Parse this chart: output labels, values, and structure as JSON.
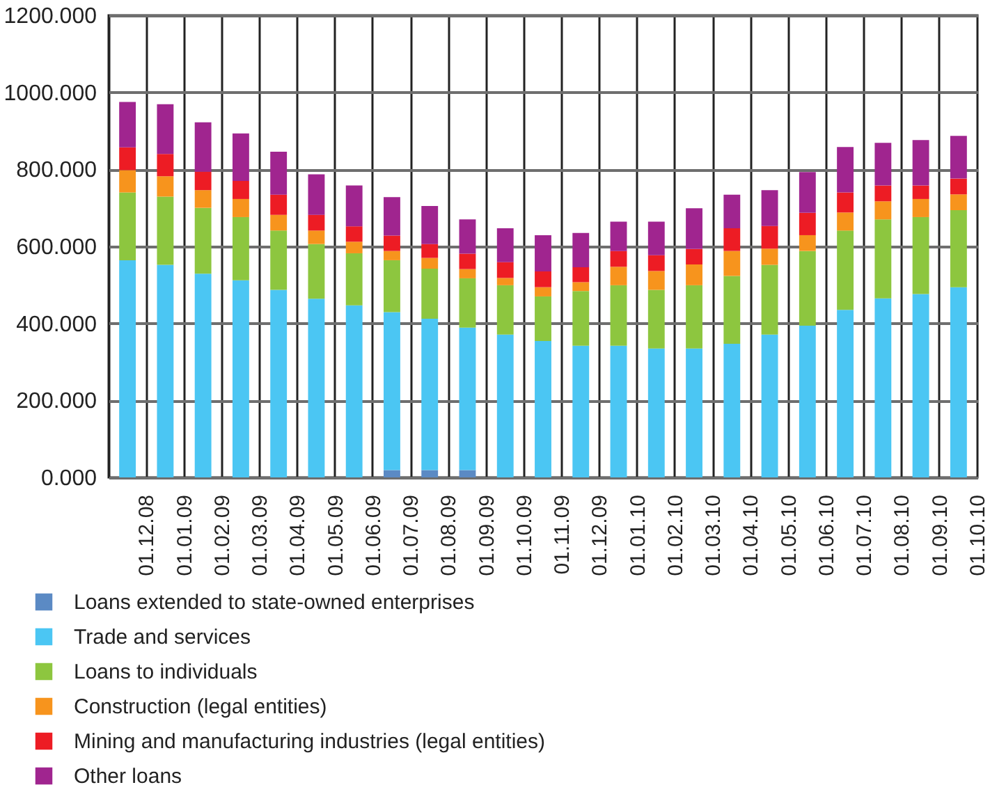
{
  "chart_data": {
    "type": "bar",
    "stacked": true,
    "grid": true,
    "legend": "bottom",
    "categories": [
      "01.12.08",
      "01.01.09",
      "01.02.09",
      "01.03.09",
      "01.04.09",
      "01.05.09",
      "01.06.09",
      "01.07.09",
      "01.08.09",
      "01.09.09",
      "01.10.09",
      "01.11.09",
      "01.12.09",
      "01.01.10",
      "01.02.10",
      "01.03.10",
      "01.04.10",
      "01.05.10",
      "01.06.10",
      "01.07.10",
      "01.08.10",
      "01.09.10",
      "01.10.10"
    ],
    "series": [
      {
        "name": "Loans extended to state-owned enterprises",
        "color": "#5b8ac4",
        "values": [
          null,
          null,
          null,
          null,
          null,
          null,
          null,
          19,
          19,
          19,
          null,
          null,
          null,
          null,
          null,
          null,
          null,
          null,
          null,
          null,
          null,
          null,
          null
        ]
      },
      {
        "name": "Trade and services",
        "color": "#4bc6f3",
        "values": [
          564,
          552,
          529,
          512,
          487,
          464,
          447,
          410,
          393,
          370,
          371,
          354,
          342,
          342,
          335,
          335,
          347,
          371,
          394,
          435,
          465,
          476,
          494
        ]
      },
      {
        "name": "Loans to individuals",
        "color": "#8dc63f",
        "values": [
          176,
          177,
          171,
          164,
          154,
          142,
          135,
          135,
          130,
          128,
          128,
          116,
          142,
          157,
          152,
          164,
          176,
          181,
          194,
          206,
          205,
          200,
          200
        ]
      },
      {
        "name": "Construction (legal entities)",
        "color": "#f7941d",
        "values": [
          58,
          53,
          46,
          47,
          41,
          35,
          30,
          24,
          28,
          24,
          19,
          24,
          23,
          48,
          49,
          54,
          65,
          42,
          41,
          47,
          47,
          47,
          41
        ]
      },
      {
        "name": "Mining and manufacturing industries (legal entities)",
        "color": "#ed1c24",
        "values": [
          59,
          58,
          48,
          47,
          52,
          41,
          40,
          40,
          36,
          40,
          41,
          41,
          39,
          41,
          41,
          40,
          59,
          59,
          58,
          52,
          41,
          35,
          41
        ]
      },
      {
        "name": "Other loans",
        "color": "#a0258f",
        "values": [
          118,
          129,
          128,
          123,
          112,
          105,
          106,
          100,
          99,
          89,
          88,
          94,
          89,
          76,
          87,
          106,
          87,
          93,
          106,
          118,
          111,
          118,
          111
        ]
      }
    ],
    "ylim": [
      0,
      1200
    ],
    "yticks": [
      {
        "value": 0,
        "label": "0.000"
      },
      {
        "value": 200,
        "label": "200.000"
      },
      {
        "value": 400,
        "label": "400.000"
      },
      {
        "value": 600,
        "label": "600.000"
      },
      {
        "value": 800,
        "label": "800.000"
      },
      {
        "value": 1000,
        "label": "1000.000"
      },
      {
        "value": 1200,
        "label": "1200.000"
      }
    ]
  }
}
